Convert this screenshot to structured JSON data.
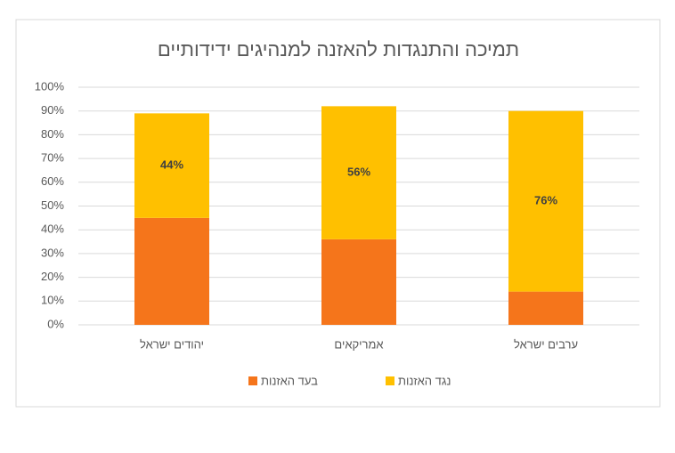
{
  "chart_data": {
    "type": "stacked_bar",
    "title": "תמיכה והתנגדות להאזנה למנהיגים ידידותיים",
    "categories": [
      "יהודים ישראל",
      "אמריקאים",
      "ערבים ישראל"
    ],
    "series": [
      {
        "name": "בעד האזנות",
        "color": "#f5751b",
        "values": [
          45,
          36,
          14
        ]
      },
      {
        "name": "נגד האזנות",
        "color": "#ffc000",
        "values": [
          44,
          56,
          76
        ],
        "value_labels": [
          "44%",
          "56%",
          "76%"
        ]
      }
    ],
    "ylim": [
      0,
      100
    ],
    "yticks": [
      {
        "value": 0,
        "label": "0%"
      },
      {
        "value": 10,
        "label": "10%"
      },
      {
        "value": 20,
        "label": "20%"
      },
      {
        "value": 30,
        "label": "30%"
      },
      {
        "value": 40,
        "label": "40%"
      },
      {
        "value": 50,
        "label": "50%"
      },
      {
        "value": 60,
        "label": "60%"
      },
      {
        "value": 70,
        "label": "70%"
      },
      {
        "value": 80,
        "label": "80%"
      },
      {
        "value": 90,
        "label": "90%"
      },
      {
        "value": 100,
        "label": "100%"
      }
    ],
    "grid": true,
    "legend": "bottom"
  }
}
